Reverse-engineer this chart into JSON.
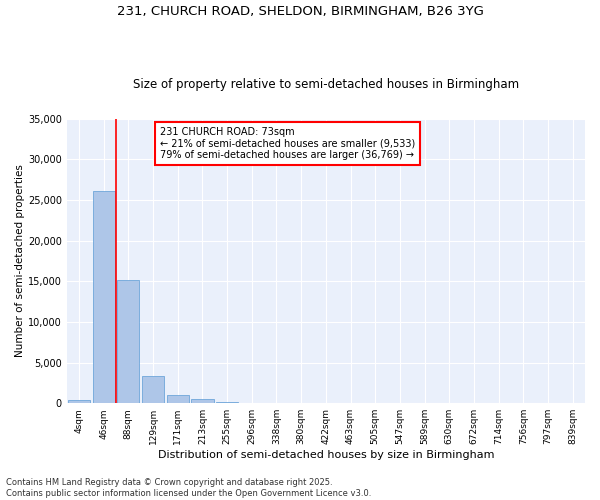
{
  "title1": "231, CHURCH ROAD, SHELDON, BIRMINGHAM, B26 3YG",
  "title2": "Size of property relative to semi-detached houses in Birmingham",
  "xlabel": "Distribution of semi-detached houses by size in Birmingham",
  "ylabel": "Number of semi-detached properties",
  "annotation_title": "231 CHURCH ROAD: 73sqm",
  "annotation_line1": "← 21% of semi-detached houses are smaller (9,533)",
  "annotation_line2": "79% of semi-detached houses are larger (36,769) →",
  "bar_color": "#aec6e8",
  "bar_edge_color": "#5b9bd5",
  "vline_color": "red",
  "background_color": "#eaf0fb",
  "grid_color": "#ffffff",
  "categories": [
    "4sqm",
    "46sqm",
    "88sqm",
    "129sqm",
    "171sqm",
    "213sqm",
    "255sqm",
    "296sqm",
    "338sqm",
    "380sqm",
    "422sqm",
    "463sqm",
    "505sqm",
    "547sqm",
    "589sqm",
    "630sqm",
    "672sqm",
    "714sqm",
    "756sqm",
    "797sqm",
    "839sqm"
  ],
  "values": [
    400,
    26100,
    15200,
    3300,
    1050,
    480,
    200,
    50,
    5,
    2,
    1,
    0,
    0,
    0,
    0,
    0,
    0,
    0,
    0,
    0,
    0
  ],
  "ylim": [
    0,
    35000
  ],
  "yticks": [
    0,
    5000,
    10000,
    15000,
    20000,
    25000,
    30000,
    35000
  ],
  "vline_x": 1.5,
  "footer": "Contains HM Land Registry data © Crown copyright and database right 2025.\nContains public sector information licensed under the Open Government Licence v3.0."
}
